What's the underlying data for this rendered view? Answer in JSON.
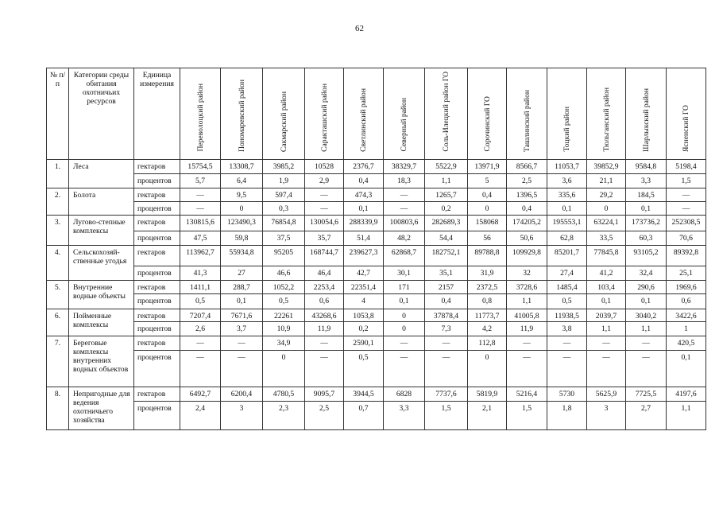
{
  "page_number": "62",
  "table": {
    "headers": {
      "no": "№ п/п",
      "category": "Категории среды обитания охотничьих ресурсов",
      "unit": "Единица измерения",
      "districts": [
        "Переволоцкий район",
        "Пономаревский район",
        "Сакмарский район",
        "Саракташский район",
        "Светлинский район",
        "Северный район",
        "Соль-Илецкий район ГО",
        "Сорочинский ГО",
        "Ташлинский район",
        "Тоцкий район",
        "Тюльганский район",
        "Шарлыкский район",
        "Ясненский ГО"
      ]
    },
    "units": {
      "ha": "гектаров",
      "pct": "процентов"
    },
    "rows": [
      {
        "no": "1.",
        "category": "Леса",
        "ha": [
          "15754,5",
          "13308,7",
          "3985,2",
          "10528",
          "2376,7",
          "38329,7",
          "5522,9",
          "13971,9",
          "8566,7",
          "11053,7",
          "39852,9",
          "9584,8",
          "5198,4"
        ],
        "pct": [
          "5,7",
          "6,4",
          "1,9",
          "2,9",
          "0,4",
          "18,3",
          "1,1",
          "5",
          "2,5",
          "3,6",
          "21,1",
          "3,3",
          "1,5"
        ]
      },
      {
        "no": "2.",
        "category": "Болота",
        "ha": [
          "—",
          "9,5",
          "597,4",
          "—",
          "474,3",
          "—",
          "1265,7",
          "0,4",
          "1396,5",
          "335,6",
          "29,2",
          "184,5",
          "—"
        ],
        "pct": [
          "—",
          "0",
          "0,3",
          "—",
          "0,1",
          "—",
          "0,2",
          "0",
          "0,4",
          "0,1",
          "0",
          "0,1",
          "—"
        ]
      },
      {
        "no": "3.",
        "category": "Лугово-степные комплексы",
        "ha": [
          "130815,6",
          "123490,3",
          "76854,8",
          "130054,6",
          "288339,9",
          "100803,6",
          "282689,3",
          "158068",
          "174205,2",
          "195553,1",
          "63224,1",
          "173736,2",
          "252308,5"
        ],
        "pct": [
          "47,5",
          "59,8",
          "37,5",
          "35,7",
          "51,4",
          "48,2",
          "54,4",
          "56",
          "50,6",
          "62,8",
          "33,5",
          "60,3",
          "70,6"
        ]
      },
      {
        "no": "4.",
        "category": "Сельскохозяй-ственные угодья",
        "ha": [
          "113962,7",
          "55934,8",
          "95205",
          "168744,7",
          "239627,3",
          "62868,7",
          "182752,1",
          "89788,8",
          "109929,8",
          "85201,7",
          "77845,8",
          "93105,2",
          "89392,8"
        ],
        "pct": [
          "41,3",
          "27",
          "46,6",
          "46,4",
          "42,7",
          "30,1",
          "35,1",
          "31,9",
          "32",
          "27,4",
          "41,2",
          "32,4",
          "25,1"
        ]
      },
      {
        "no": "5.",
        "category": "Внутренние водные объекты",
        "ha": [
          "1411,1",
          "288,7",
          "1052,2",
          "2253,4",
          "22351,4",
          "171",
          "2157",
          "2372,5",
          "3728,6",
          "1485,4",
          "103,4",
          "290,6",
          "1969,6"
        ],
        "pct": [
          "0,5",
          "0,1",
          "0,5",
          "0,6",
          "4",
          "0,1",
          "0,4",
          "0,8",
          "1,1",
          "0,5",
          "0,1",
          "0,1",
          "0,6"
        ]
      },
      {
        "no": "6.",
        "category": "Пойменные комплексы",
        "ha": [
          "7207,4",
          "7671,6",
          "22261",
          "43268,6",
          "1053,8",
          "0",
          "37878,4",
          "11773,7",
          "41005,8",
          "11938,5",
          "2039,7",
          "3040,2",
          "3422,6"
        ],
        "pct": [
          "2,6",
          "3,7",
          "10,9",
          "11,9",
          "0,2",
          "0",
          "7,3",
          "4,2",
          "11,9",
          "3,8",
          "1,1",
          "1,1",
          "1"
        ]
      },
      {
        "no": "7.",
        "category": "Береговые комплексы внутренних водных объектов",
        "ha": [
          "—",
          "—",
          "34,9",
          "—",
          "2590,1",
          "—",
          "—",
          "112,8",
          "—",
          "—",
          "—",
          "—",
          "420,5"
        ],
        "pct": [
          "—",
          "—",
          "0",
          "—",
          "0,5",
          "—",
          "—",
          "0",
          "—",
          "—",
          "—",
          "—",
          "0,1"
        ]
      },
      {
        "no": "8.",
        "category": "Непригодные для ведения охотничьего хозяйства",
        "ha": [
          "6492,7",
          "6200,4",
          "4780,5",
          "9095,7",
          "3944,5",
          "6828",
          "7737,6",
          "5819,9",
          "5216,4",
          "5730",
          "5625,9",
          "7725,5",
          "4197,6"
        ],
        "pct": [
          "2,4",
          "3",
          "2,3",
          "2,5",
          "0,7",
          "3,3",
          "1,5",
          "2,1",
          "1,5",
          "1,8",
          "3",
          "2,7",
          "1,1"
        ]
      }
    ]
  }
}
